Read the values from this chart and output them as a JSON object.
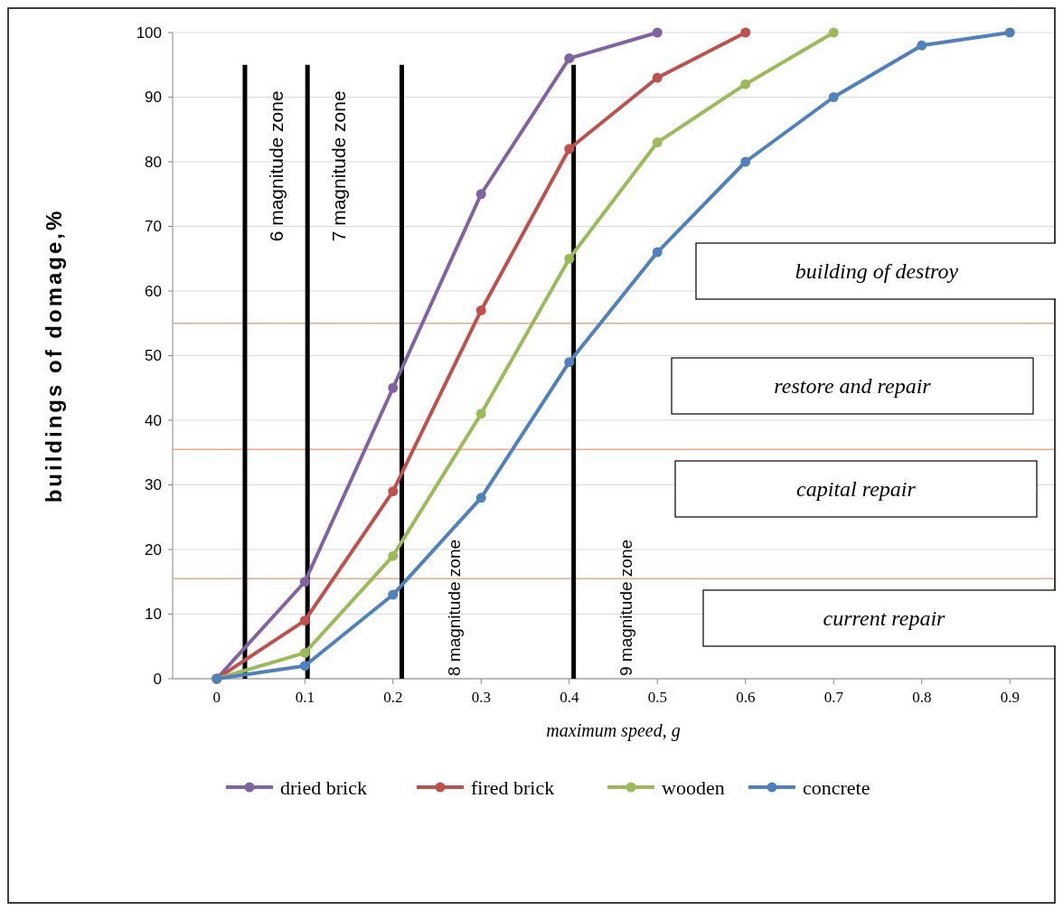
{
  "chart_data": {
    "type": "line",
    "xlabel": "maximum speed, g",
    "ylabel": "buildings of domage,%",
    "xlim": [
      -0.05,
      0.95
    ],
    "xticks": [
      0,
      0.1,
      0.2,
      0.3,
      0.4,
      0.5,
      0.6,
      0.7,
      0.8,
      0.9
    ],
    "ylim": [
      0,
      100
    ],
    "yticks": [
      0,
      10,
      20,
      30,
      40,
      50,
      60,
      70,
      80,
      90,
      100
    ],
    "grid": "y",
    "legend": "bottom",
    "marker": "circle",
    "line_style": "solid",
    "series": [
      {
        "name": "dried brick",
        "color": "#8064a2",
        "x": [
          0,
          0.1,
          0.2,
          0.3,
          0.4,
          0.5
        ],
        "values": [
          0,
          15,
          45,
          75,
          96,
          100
        ]
      },
      {
        "name": "fired brick",
        "color": "#c0504d",
        "x": [
          0,
          0.1,
          0.2,
          0.3,
          0.4,
          0.5,
          0.6
        ],
        "values": [
          0,
          9,
          29,
          57,
          82,
          93,
          100
        ]
      },
      {
        "name": "wooden",
        "color": "#9bbb59",
        "x": [
          0,
          0.1,
          0.2,
          0.3,
          0.4,
          0.5,
          0.6,
          0.7
        ],
        "values": [
          0,
          4,
          19,
          41,
          65,
          83,
          92,
          100
        ]
      },
      {
        "name": "concrete",
        "color": "#4f81bd",
        "x": [
          0,
          0.1,
          0.2,
          0.3,
          0.4,
          0.5,
          0.6,
          0.7,
          0.8,
          0.9
        ],
        "values": [
          0,
          2,
          13,
          28,
          49,
          66,
          80,
          90,
          98,
          100
        ]
      }
    ],
    "ref_lines": [
      {
        "axis": "y",
        "value": 55,
        "color": "#f4a582"
      },
      {
        "axis": "y",
        "value": 35.5,
        "color": "#f4a582"
      },
      {
        "axis": "y",
        "value": 15.5,
        "color": "#f4a582"
      },
      {
        "axis": "x",
        "value": 0.032,
        "label": "6 magnitude zone",
        "color": "#000000"
      },
      {
        "axis": "x",
        "value": 0.103,
        "label": "7 magnitude zone",
        "color": "#000000"
      },
      {
        "axis": "x",
        "value": 0.21,
        "label": "8 magnitude zone",
        "color": "#000000"
      },
      {
        "axis": "x",
        "value": 0.405,
        "label": "9 magnitude zone",
        "color": "#000000"
      }
    ],
    "annotations": [
      "building of destroy",
      "restore and repair",
      "capital repair",
      "current repair"
    ]
  }
}
